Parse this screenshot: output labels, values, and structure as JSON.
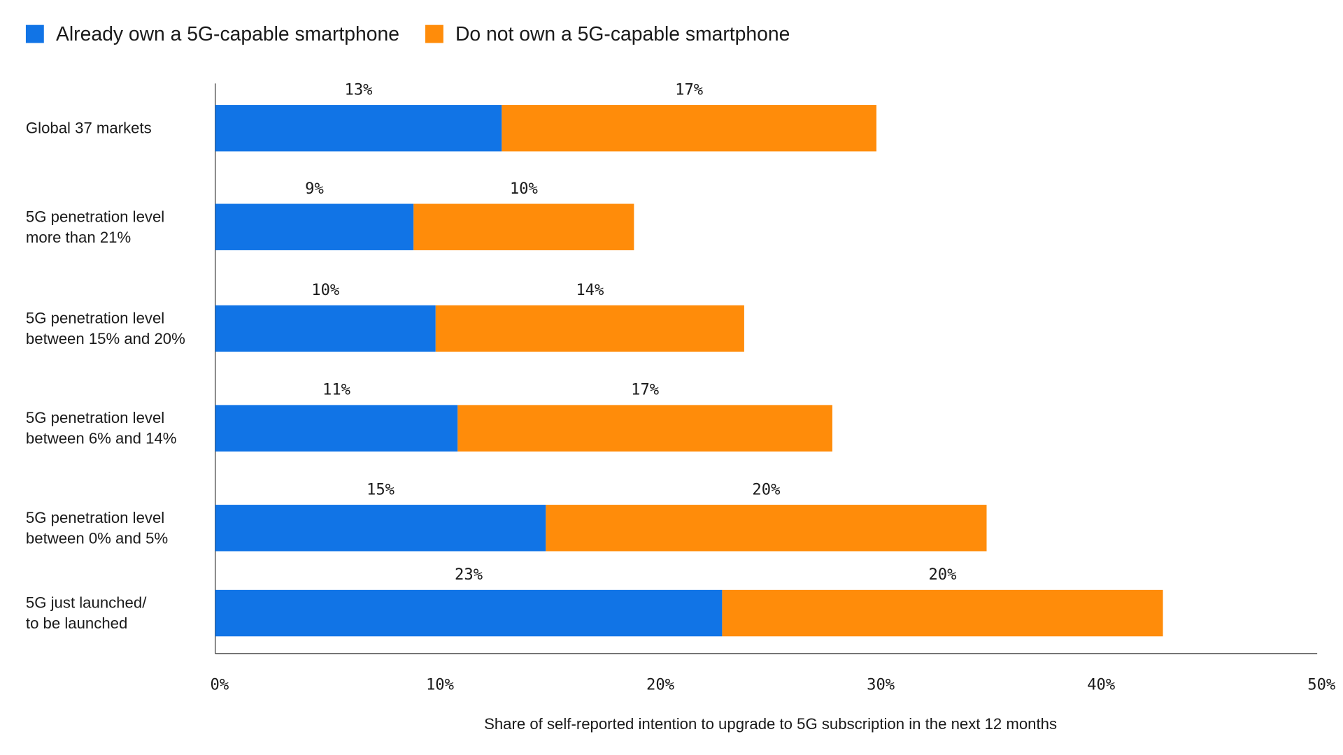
{
  "chart_data": {
    "type": "bar",
    "orientation": "horizontal",
    "stacked": true,
    "categories": [
      "Global 37 markets",
      "5G penetration level\nmore than 21%",
      "5G penetration level\nbetween 15% and 20%",
      "5G penetration level\nbetween 6% and 14%",
      "5G penetration level\nbetween 0% and 5%",
      "5G just launched/\nto be launched"
    ],
    "series": [
      {
        "name": "Already own a 5G-capable smartphone",
        "color": "#1174e6",
        "values": [
          13,
          9,
          10,
          11,
          15,
          23
        ],
        "labels": [
          "13%",
          "9%",
          "10%",
          "11%",
          "15%",
          "23%"
        ]
      },
      {
        "name": "Do not own a 5G-capable smartphone",
        "color": "#ff8c0a",
        "values": [
          17,
          10,
          14,
          17,
          20,
          20
        ],
        "labels": [
          "17%",
          "10%",
          "14%",
          "17%",
          "20%",
          "20%"
        ]
      }
    ],
    "xlim": [
      0,
      50
    ],
    "xticks": [
      "0%",
      "10%",
      "20%",
      "30%",
      "40%",
      "50%"
    ],
    "xlabel": "Share of self-reported intention to upgrade to 5G subscription in the next 12 months",
    "ylabel": "",
    "legend": "top-left",
    "grid": false
  }
}
